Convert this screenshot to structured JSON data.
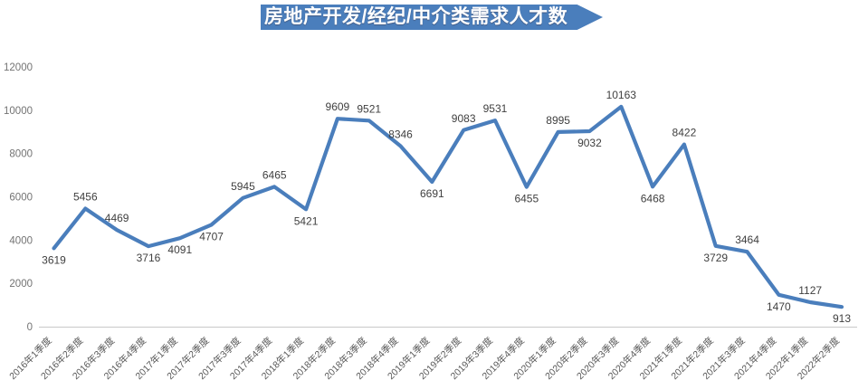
{
  "title": {
    "text": "房地产开发/经纪/中介类需求人才数"
  },
  "colors": {
    "banner_bg": "#4a7ebc",
    "banner_text": "#ffffff",
    "line": "#4a7ebc",
    "axis_line": "#c9c9c9",
    "y_tick_label": "#737373",
    "x_tick_label": "#595959",
    "data_label": "#3f3f3f",
    "background": "#ffffff"
  },
  "chart_data": {
    "type": "line",
    "title": "房地产开发/经纪/中介类需求人才数",
    "categories": [
      "2016年1季度",
      "2016年2季度",
      "2016年3季度",
      "2016年4季度",
      "2017年1季度",
      "2017年2季度",
      "2017年3季度",
      "2017年4季度",
      "2018年1季度",
      "2018年2季度",
      "2018年3季度",
      "2018年4季度",
      "2019年1季度",
      "2019年2季度",
      "2019年3季度",
      "2019年4季度",
      "2020年1季度",
      "2020年2季度",
      "2020年3季度",
      "2020年4季度",
      "2021年1季度",
      "2021年2季度",
      "2021年3季度",
      "2021年4季度",
      "2022年1季度",
      "2022年2季度"
    ],
    "values": [
      3619,
      5456,
      4469,
      3716,
      4091,
      4707,
      5945,
      6465,
      5421,
      9609,
      9521,
      8346,
      6691,
      9083,
      9531,
      6455,
      8995,
      9032,
      10163,
      6468,
      8422,
      3729,
      3464,
      1470,
      1127,
      913
    ],
    "data_label_positions": [
      "below",
      "above",
      "above",
      "below",
      "below",
      "below",
      "above",
      "above",
      "below",
      "above",
      "above",
      "above",
      "below",
      "above",
      "above",
      "below",
      "above",
      "below",
      "above",
      "below",
      "above",
      "below",
      "above",
      "below",
      "above",
      "below"
    ],
    "xlabel": "",
    "ylabel": "",
    "ylim": [
      0,
      12000
    ],
    "yticks": [
      0,
      2000,
      4000,
      6000,
      8000,
      10000,
      12000
    ],
    "grid": "off",
    "legend": "none",
    "data_labels": "on",
    "marker": "none"
  }
}
